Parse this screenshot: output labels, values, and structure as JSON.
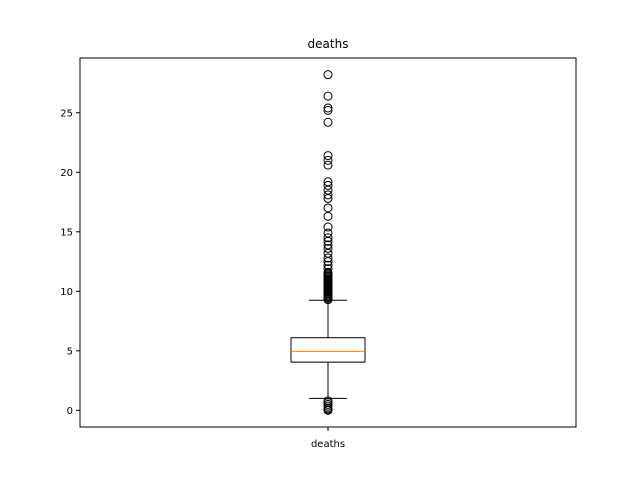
{
  "chart_data": {
    "type": "boxplot",
    "title": "deaths",
    "xlabel": "",
    "ylabel": "",
    "categories": [
      "deaths"
    ],
    "ylim": [
      -1.4,
      29.6
    ],
    "yticks": [
      0,
      5,
      10,
      15,
      20,
      25
    ],
    "grid": false,
    "legend": "none",
    "box": {
      "whisker_low": 1.0,
      "q1": 4.05,
      "median": 4.95,
      "q3": 6.1,
      "whisker_high": 9.25
    },
    "outliers": [
      0.0,
      0.1,
      0.2,
      0.35,
      0.5,
      0.65,
      0.8,
      9.3,
      9.4,
      9.5,
      9.6,
      9.7,
      9.8,
      9.9,
      10.0,
      10.1,
      10.2,
      10.3,
      10.4,
      10.5,
      10.6,
      10.7,
      10.8,
      10.9,
      11.0,
      11.1,
      11.2,
      11.3,
      11.4,
      11.5,
      11.6,
      11.9,
      12.2,
      12.5,
      12.8,
      13.2,
      13.6,
      13.9,
      14.2,
      14.5,
      14.9,
      15.4,
      16.3,
      17.0,
      17.8,
      18.1,
      18.5,
      18.9,
      19.2,
      20.6,
      21.0,
      21.4,
      24.2,
      25.2,
      25.4,
      26.4,
      28.2
    ],
    "colors": {
      "box": "#000000",
      "median": "#ff7f0e",
      "outlier_edge": "#000000",
      "background": "#ffffff"
    }
  }
}
